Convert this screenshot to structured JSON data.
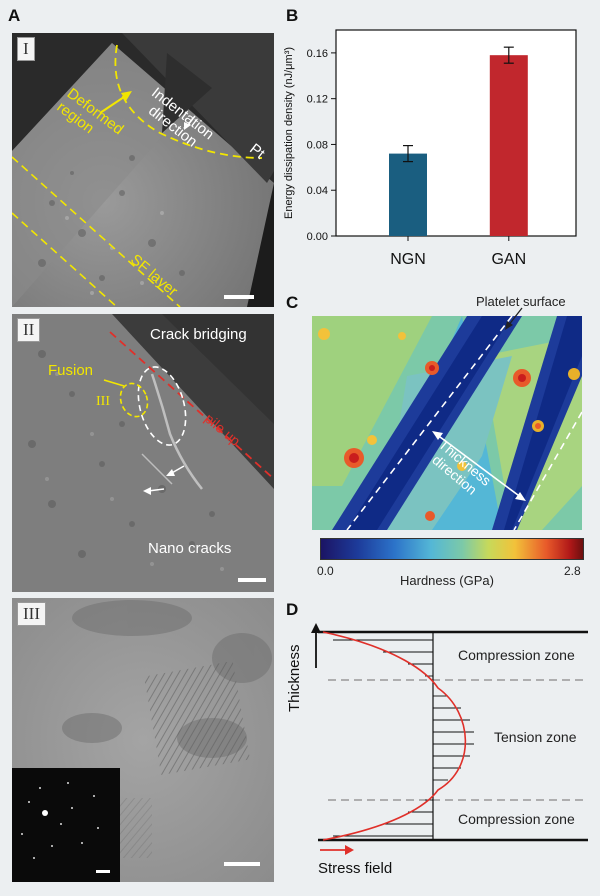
{
  "panels": {
    "A": {
      "letter": "A",
      "sub1": {
        "roman": "I",
        "indentation_direction": [
          "Indentation",
          "direction"
        ],
        "deformed_region": [
          "Deformed",
          "region"
        ],
        "pt": "Pt",
        "sf_layer": "SF layer"
      },
      "sub2": {
        "roman": "II",
        "crack_bridging": "Crack bridging",
        "fusion": "Fusion",
        "roman_inset": "III",
        "pile_up": "pile up",
        "nano_cracks": "Nano cracks"
      },
      "sub3": {
        "roman": "III"
      }
    },
    "B": {
      "letter": "B"
    },
    "C": {
      "letter": "C",
      "platelet_surface": "Platelet surface",
      "thickness_direction": [
        "Thickness",
        "direction"
      ],
      "colorbar_min": "0.0",
      "colorbar_max": "2.8",
      "colorbar_label": "Hardness (GPa)"
    },
    "D": {
      "letter": "D",
      "thickness": "Thickness",
      "compression_top": "Compression zone",
      "tension": "Tension zone",
      "compression_bottom": "Compression zone",
      "stress_field": "Stress field"
    }
  },
  "colors": {
    "gan": "#c1272d",
    "ngn": "#1a5e80",
    "yellow": "#f2e600",
    "red_dash": "#e0302a"
  },
  "chart_data": {
    "type": "bar",
    "categories": [
      "NGN",
      "GAN"
    ],
    "values": [
      0.072,
      0.158
    ],
    "errors": [
      0.007,
      0.007
    ],
    "ylabel": "Energy dissipation density (nJ/μm³)",
    "yticks": [
      "0.00",
      "0.04",
      "0.08",
      "0.12",
      "0.16"
    ],
    "ylim": [
      0,
      0.18
    ],
    "grid": false
  }
}
